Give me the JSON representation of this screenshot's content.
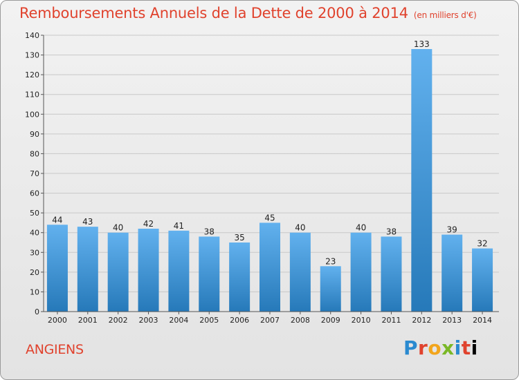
{
  "title": "Remboursements Annuels de la Dette de 2000 à 2014",
  "unit_note": "(en milliers d'€)",
  "commune": "ANGIENS",
  "logo": "Proxiti",
  "colors": {
    "title": "#e0422d",
    "bar_top": "#62b1ee",
    "bar_bottom": "#2679b9",
    "grid": "#c8c8c8"
  },
  "chart_data": {
    "type": "bar",
    "categories": [
      "2000",
      "2001",
      "2002",
      "2003",
      "2004",
      "2005",
      "2006",
      "2007",
      "2008",
      "2009",
      "2010",
      "2011",
      "2012",
      "2013",
      "2014"
    ],
    "values": [
      44,
      43,
      40,
      42,
      41,
      38,
      35,
      45,
      40,
      23,
      40,
      38,
      133,
      39,
      32
    ],
    "ylim": [
      0,
      140
    ],
    "yticks": [
      0,
      10,
      20,
      30,
      40,
      50,
      60,
      70,
      80,
      90,
      100,
      110,
      120,
      130,
      140
    ],
    "grid": true
  }
}
